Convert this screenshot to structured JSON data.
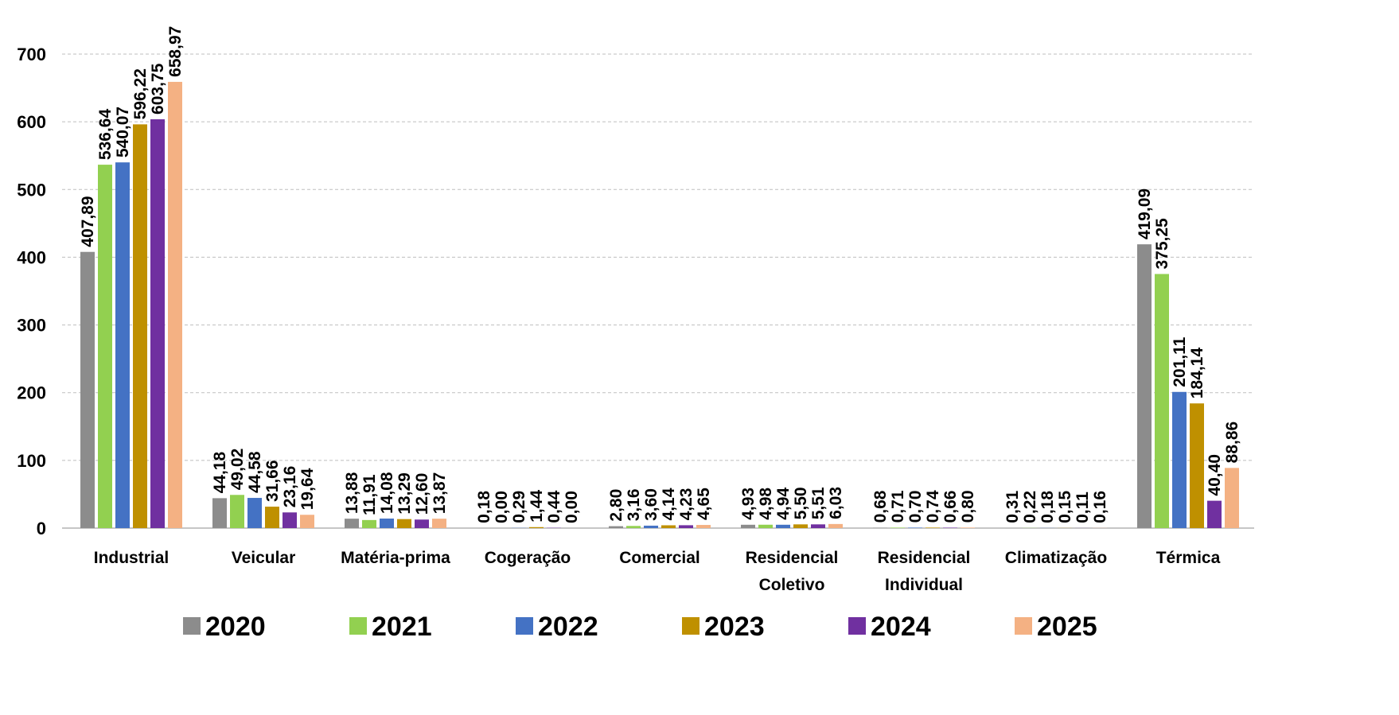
{
  "chart_data": {
    "type": "bar",
    "categories": [
      "Industrial",
      "Veicular",
      "Matéria-prima",
      "Cogeração",
      "Comercial",
      "Residencial Coletivo",
      "Residencial Individual",
      "Climatização",
      "Térmica"
    ],
    "series": [
      {
        "name": "2020",
        "color": "#8c8c8c",
        "values": [
          407.89,
          44.18,
          13.88,
          0.18,
          2.8,
          4.93,
          0.68,
          0.31,
          419.09
        ],
        "value_labels": [
          "407,89",
          "44,18",
          "13,88",
          "0,18",
          "2,80",
          "4,93",
          "0,68",
          "0,31",
          "419,09"
        ]
      },
      {
        "name": "2021",
        "color": "#92d050",
        "values": [
          536.64,
          49.02,
          11.91,
          0.0,
          3.16,
          4.98,
          0.71,
          0.22,
          375.25
        ],
        "value_labels": [
          "536,64",
          "49,02",
          "11,91",
          "0,00",
          "3,16",
          "4,98",
          "0,71",
          "0,22",
          "375,25"
        ]
      },
      {
        "name": "2022",
        "color": "#4472c4",
        "values": [
          540.07,
          44.58,
          14.08,
          0.29,
          3.6,
          4.94,
          0.7,
          0.18,
          201.11
        ],
        "value_labels": [
          "540,07",
          "44,58",
          "14,08",
          "0,29",
          "3,60",
          "4,94",
          "0,70",
          "0,18",
          "201,11"
        ]
      },
      {
        "name": "2023",
        "color": "#bf9000",
        "values": [
          596.22,
          31.66,
          13.29,
          1.44,
          4.14,
          5.5,
          0.74,
          0.15,
          184.14
        ],
        "value_labels": [
          "596,22",
          "31,66",
          "13,29",
          "1,44",
          "4,14",
          "5,50",
          "0,74",
          "0,15",
          "184,14"
        ]
      },
      {
        "name": "2024",
        "color": "#7030a0",
        "values": [
          603.75,
          23.16,
          12.6,
          0.44,
          4.23,
          5.51,
          0.66,
          0.11,
          40.4
        ],
        "value_labels": [
          "603,75",
          "23,16",
          "12,60",
          "0,44",
          "4,23",
          "5,51",
          "0,66",
          "0,11",
          "40,40"
        ]
      },
      {
        "name": "2025",
        "color": "#f4b183",
        "values": [
          658.97,
          19.64,
          13.87,
          0.0,
          4.65,
          6.03,
          0.8,
          0.16,
          88.86
        ],
        "value_labels": [
          "658,97",
          "19,64",
          "13,87",
          "0,00",
          "4,65",
          "6,03",
          "0,80",
          "0,16",
          "88,86"
        ]
      }
    ],
    "ylim": [
      0,
      700
    ],
    "yticks": [
      0,
      100,
      200,
      300,
      400,
      500,
      600,
      700
    ],
    "grid": true,
    "legend": "bottom"
  }
}
